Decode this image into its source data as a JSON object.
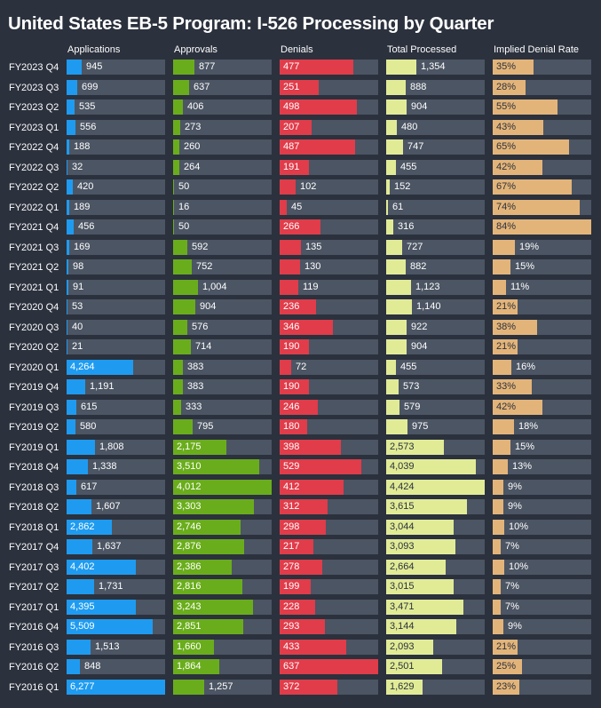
{
  "title": "United States EB-5 Program: I-526 Processing by Quarter",
  "columns": [
    {
      "key": "applications",
      "label": "Applications",
      "color": "#1e9bf0",
      "max": 6277
    },
    {
      "key": "approvals",
      "label": "Approvals",
      "color": "#6aad1c",
      "max": 4012
    },
    {
      "key": "denials",
      "label": "Denials",
      "color": "#e03c4a",
      "max": 637
    },
    {
      "key": "total_processed",
      "label": "Total Processed",
      "color": "#e1eb96",
      "max": 4424
    },
    {
      "key": "denial_rate",
      "label": "Implied Denial Rate",
      "color": "#e3b479",
      "max": 84
    }
  ],
  "colors": {
    "background": "#2b313d",
    "track": "#4c5563",
    "text": "#ffffff",
    "dark_text": "#2b313d"
  },
  "chart_data": {
    "type": "bar",
    "title": "United States EB-5 Program: I-526 Processing by Quarter",
    "categories": [
      "FY2023 Q4",
      "FY2023 Q3",
      "FY2023 Q2",
      "FY2023 Q1",
      "FY2022 Q4",
      "FY2022 Q3",
      "FY2022 Q2",
      "FY2022 Q1",
      "FY2021 Q4",
      "FY2021 Q3",
      "FY2021 Q2",
      "FY2021 Q1",
      "FY2020 Q4",
      "FY2020 Q3",
      "FY2020 Q2",
      "FY2020 Q1",
      "FY2019 Q4",
      "FY2019 Q3",
      "FY2019 Q2",
      "FY2019 Q1",
      "FY2018 Q4",
      "FY2018 Q3",
      "FY2018 Q2",
      "FY2018 Q1",
      "FY2017 Q4",
      "FY2017 Q3",
      "FY2017 Q2",
      "FY2017 Q1",
      "FY2016 Q4",
      "FY2016 Q3",
      "FY2016 Q2",
      "FY2016 Q1"
    ],
    "series": [
      {
        "name": "Applications",
        "values": [
          945,
          699,
          535,
          556,
          188,
          32,
          420,
          189,
          456,
          169,
          98,
          91,
          53,
          40,
          21,
          4264,
          1191,
          615,
          580,
          1808,
          1338,
          617,
          1607,
          2862,
          1637,
          4402,
          1731,
          4395,
          5509,
          1513,
          848,
          6277
        ],
        "labels": [
          "945",
          "699",
          "535",
          "556",
          "188",
          "32",
          "420",
          "189",
          "456",
          "169",
          "98",
          "91",
          "53",
          "40",
          "21",
          "4,264",
          "1,191",
          "615",
          "580",
          "1,808",
          "1,338",
          "617",
          "1,607",
          "2,862",
          "1,637",
          "4,402",
          "1,731",
          "4,395",
          "5,509",
          "1,513",
          "848",
          "6,277"
        ]
      },
      {
        "name": "Approvals",
        "values": [
          877,
          637,
          406,
          273,
          260,
          264,
          50,
          16,
          50,
          592,
          752,
          1004,
          904,
          576,
          714,
          383,
          383,
          333,
          795,
          2175,
          3510,
          4012,
          3303,
          2746,
          2876,
          2386,
          2816,
          3243,
          2851,
          1660,
          1864,
          1257
        ],
        "labels": [
          "877",
          "637",
          "406",
          "273",
          "260",
          "264",
          "50",
          "16",
          "50",
          "592",
          "752",
          "1,004",
          "904",
          "576",
          "714",
          "383",
          "383",
          "333",
          "795",
          "2,175",
          "3,510",
          "4,012",
          "3,303",
          "2,746",
          "2,876",
          "2,386",
          "2,816",
          "3,243",
          "2,851",
          "1,660",
          "1,864",
          "1,257"
        ]
      },
      {
        "name": "Denials",
        "values": [
          477,
          251,
          498,
          207,
          487,
          191,
          102,
          45,
          266,
          135,
          130,
          119,
          236,
          346,
          190,
          72,
          190,
          246,
          180,
          398,
          529,
          412,
          312,
          298,
          217,
          278,
          199,
          228,
          293,
          433,
          637,
          372
        ],
        "labels": [
          "477",
          "251",
          "498",
          "207",
          "487",
          "191",
          "102",
          "45",
          "266",
          "135",
          "130",
          "119",
          "236",
          "346",
          "190",
          "72",
          "190",
          "246",
          "180",
          "398",
          "529",
          "412",
          "312",
          "298",
          "217",
          "278",
          "199",
          "228",
          "293",
          "433",
          "637",
          "372"
        ]
      },
      {
        "name": "Total Processed",
        "values": [
          1354,
          888,
          904,
          480,
          747,
          455,
          152,
          61,
          316,
          727,
          882,
          1123,
          1140,
          922,
          904,
          455,
          573,
          579,
          975,
          2573,
          4039,
          4424,
          3615,
          3044,
          3093,
          2664,
          3015,
          3471,
          3144,
          2093,
          2501,
          1629
        ],
        "labels": [
          "1,354",
          "888",
          "904",
          "480",
          "747",
          "455",
          "152",
          "61",
          "316",
          "727",
          "882",
          "1,123",
          "1,140",
          "922",
          "904",
          "455",
          "573",
          "579",
          "975",
          "2,573",
          "4,039",
          "4,424",
          "3,615",
          "3,044",
          "3,093",
          "2,664",
          "3,015",
          "3,471",
          "3,144",
          "2,093",
          "2,501",
          "1,629"
        ]
      },
      {
        "name": "Implied Denial Rate",
        "values": [
          35,
          28,
          55,
          43,
          65,
          42,
          67,
          74,
          84,
          19,
          15,
          11,
          21,
          38,
          21,
          16,
          33,
          42,
          18,
          15,
          13,
          9,
          9,
          10,
          7,
          10,
          7,
          7,
          9,
          21,
          25,
          23
        ],
        "labels": [
          "35%",
          "28%",
          "55%",
          "43%",
          "65%",
          "42%",
          "67%",
          "74%",
          "84%",
          "19%",
          "15%",
          "11%",
          "21%",
          "38%",
          "21%",
          "16%",
          "33%",
          "42%",
          "18%",
          "15%",
          "13%",
          "9%",
          "9%",
          "10%",
          "7%",
          "10%",
          "7%",
          "7%",
          "9%",
          "21%",
          "25%",
          "23%"
        ]
      }
    ]
  }
}
